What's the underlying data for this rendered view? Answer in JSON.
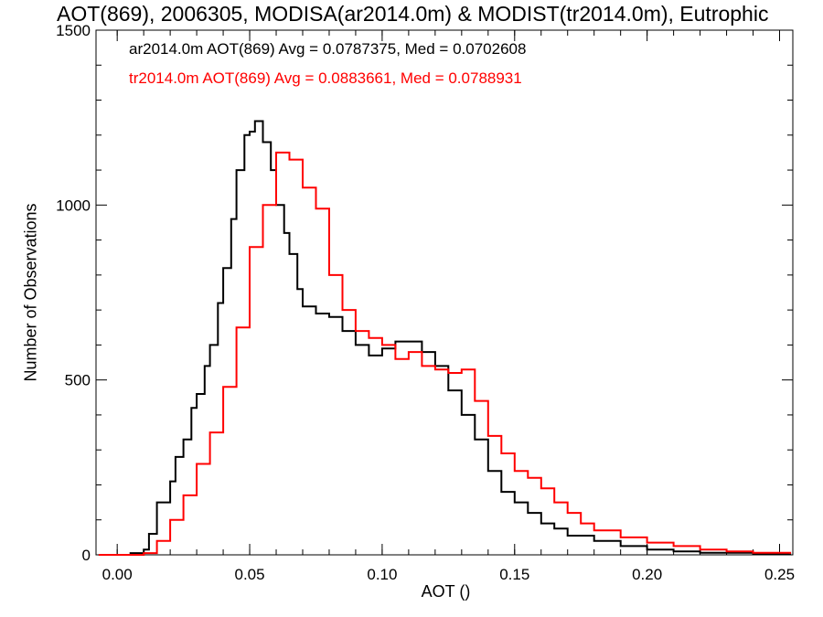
{
  "chart_data": {
    "type": "line",
    "title": "AOT(869), 2006305, MODISA(ar2014.0m) & MODIST(tr2014.0m), Eutrophic",
    "xlabel": "AOT ()",
    "ylabel": "Number of Observations",
    "xlim": [
      -0.008,
      0.255
    ],
    "ylim": [
      0,
      1500
    ],
    "x_ticks": [
      "0.00",
      "0.05",
      "0.10",
      "0.15",
      "0.20",
      "0.25"
    ],
    "y_ticks": [
      "0",
      "500",
      "1000",
      "1500"
    ],
    "grid": false,
    "legend_position": "top-left",
    "legend": [
      {
        "text": "ar2014.0m AOT(869) Avg = 0.0787375, Med = 0.0702608",
        "color": "#000000"
      },
      {
        "text": "tr2014.0m AOT(869) Avg = 0.0883661, Med = 0.0788931",
        "color": "#ff0000"
      }
    ],
    "series": [
      {
        "name": "ar2014.0m",
        "color": "#000000",
        "points": [
          [
            -0.007,
            0
          ],
          [
            0.0,
            0
          ],
          [
            0.005,
            5
          ],
          [
            0.01,
            15
          ],
          [
            0.012,
            60
          ],
          [
            0.015,
            150
          ],
          [
            0.02,
            210
          ],
          [
            0.022,
            280
          ],
          [
            0.025,
            330
          ],
          [
            0.028,
            420
          ],
          [
            0.03,
            460
          ],
          [
            0.033,
            540
          ],
          [
            0.035,
            600
          ],
          [
            0.038,
            720
          ],
          [
            0.04,
            820
          ],
          [
            0.043,
            960
          ],
          [
            0.045,
            1100
          ],
          [
            0.048,
            1200
          ],
          [
            0.05,
            1210
          ],
          [
            0.052,
            1240
          ],
          [
            0.055,
            1180
          ],
          [
            0.058,
            1100
          ],
          [
            0.06,
            1000
          ],
          [
            0.063,
            920
          ],
          [
            0.065,
            860
          ],
          [
            0.068,
            760
          ],
          [
            0.07,
            710
          ],
          [
            0.075,
            690
          ],
          [
            0.08,
            680
          ],
          [
            0.085,
            640
          ],
          [
            0.09,
            600
          ],
          [
            0.095,
            570
          ],
          [
            0.1,
            590
          ],
          [
            0.105,
            610
          ],
          [
            0.11,
            610
          ],
          [
            0.115,
            580
          ],
          [
            0.12,
            540
          ],
          [
            0.125,
            470
          ],
          [
            0.13,
            400
          ],
          [
            0.135,
            330
          ],
          [
            0.14,
            240
          ],
          [
            0.145,
            180
          ],
          [
            0.15,
            150
          ],
          [
            0.155,
            120
          ],
          [
            0.16,
            90
          ],
          [
            0.165,
            75
          ],
          [
            0.17,
            55
          ],
          [
            0.18,
            40
          ],
          [
            0.19,
            25
          ],
          [
            0.2,
            15
          ],
          [
            0.21,
            10
          ],
          [
            0.22,
            6
          ],
          [
            0.24,
            3
          ],
          [
            0.254,
            0
          ]
        ]
      },
      {
        "name": "tr2014.0m",
        "color": "#ff0000",
        "points": [
          [
            -0.007,
            0
          ],
          [
            0.0,
            0
          ],
          [
            0.01,
            5
          ],
          [
            0.015,
            40
          ],
          [
            0.02,
            100
          ],
          [
            0.025,
            170
          ],
          [
            0.03,
            260
          ],
          [
            0.035,
            350
          ],
          [
            0.04,
            480
          ],
          [
            0.045,
            650
          ],
          [
            0.05,
            880
          ],
          [
            0.055,
            1000
          ],
          [
            0.06,
            1150
          ],
          [
            0.065,
            1130
          ],
          [
            0.07,
            1050
          ],
          [
            0.075,
            990
          ],
          [
            0.08,
            800
          ],
          [
            0.085,
            700
          ],
          [
            0.09,
            640
          ],
          [
            0.095,
            620
          ],
          [
            0.1,
            600
          ],
          [
            0.105,
            560
          ],
          [
            0.11,
            580
          ],
          [
            0.115,
            540
          ],
          [
            0.12,
            530
          ],
          [
            0.125,
            520
          ],
          [
            0.13,
            530
          ],
          [
            0.135,
            440
          ],
          [
            0.14,
            340
          ],
          [
            0.145,
            290
          ],
          [
            0.15,
            240
          ],
          [
            0.155,
            220
          ],
          [
            0.16,
            190
          ],
          [
            0.165,
            150
          ],
          [
            0.17,
            120
          ],
          [
            0.175,
            90
          ],
          [
            0.18,
            70
          ],
          [
            0.19,
            50
          ],
          [
            0.2,
            35
          ],
          [
            0.21,
            25
          ],
          [
            0.22,
            15
          ],
          [
            0.23,
            10
          ],
          [
            0.24,
            6
          ],
          [
            0.254,
            3
          ]
        ]
      }
    ]
  }
}
